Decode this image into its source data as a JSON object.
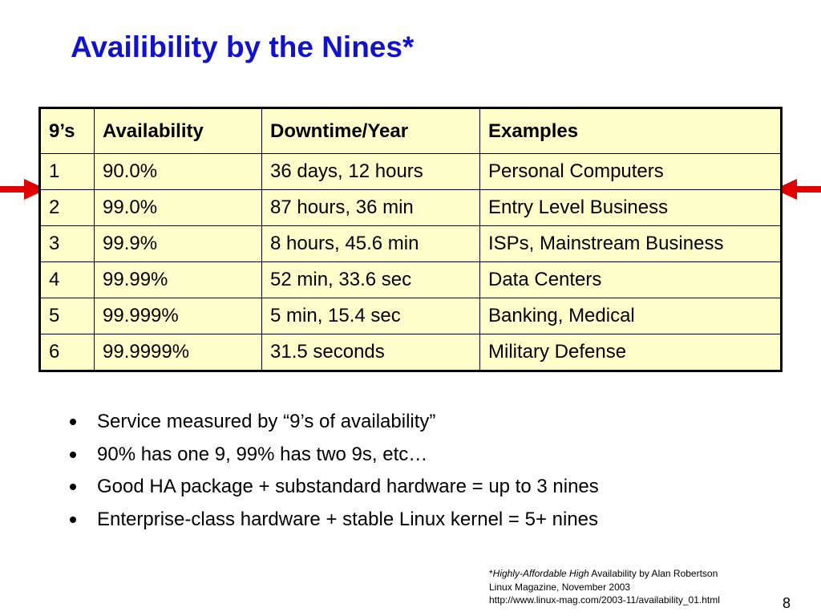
{
  "slide": {
    "title": "Availibility by the Nines*",
    "page_number": "8"
  },
  "table": {
    "headers": [
      "9’s",
      "Availability",
      "Downtime/Year",
      "Examples"
    ],
    "rows": [
      [
        "1",
        "90.0%",
        "36 days, 12 hours",
        "Personal Computers"
      ],
      [
        "2",
        "99.0%",
        "87 hours, 36 min",
        "Entry Level Business"
      ],
      [
        "3",
        "99.9%",
        "8 hours, 45.6 min",
        "ISPs, Mainstream Business"
      ],
      [
        "4",
        "99.99%",
        "52 min, 33.6 sec",
        "Data Centers"
      ],
      [
        "5",
        "99.999%",
        "5 min, 15.4 sec",
        "Banking, Medical"
      ],
      [
        "6",
        "99.9999%",
        "31.5 seconds",
        "Military Defense"
      ]
    ]
  },
  "bullets": [
    "Service measured by “9’s of availability”",
    "90% has one 9, 99% has two 9s, etc…",
    "Good HA package + substandard hardware = up to 3 nines",
    "Enterprise-class hardware + stable Linux kernel = 5+ nines"
  ],
  "footnote": {
    "asterisk": "*",
    "italic_part": "Highly-Affordable High",
    "line1_rest": " Availability by Alan Robertson",
    "line2": "Linux Magazine, November 2003",
    "line3": "http://www.linux-mag.com/2003-11/availability_01.html"
  },
  "icons": {
    "left_arrow": "arrow-right-icon",
    "right_arrow": "arrow-left-icon"
  },
  "colors": {
    "title": "#1212cc",
    "table_background": "#ffffcc",
    "arrow": "#e00000",
    "border": "#000000"
  }
}
